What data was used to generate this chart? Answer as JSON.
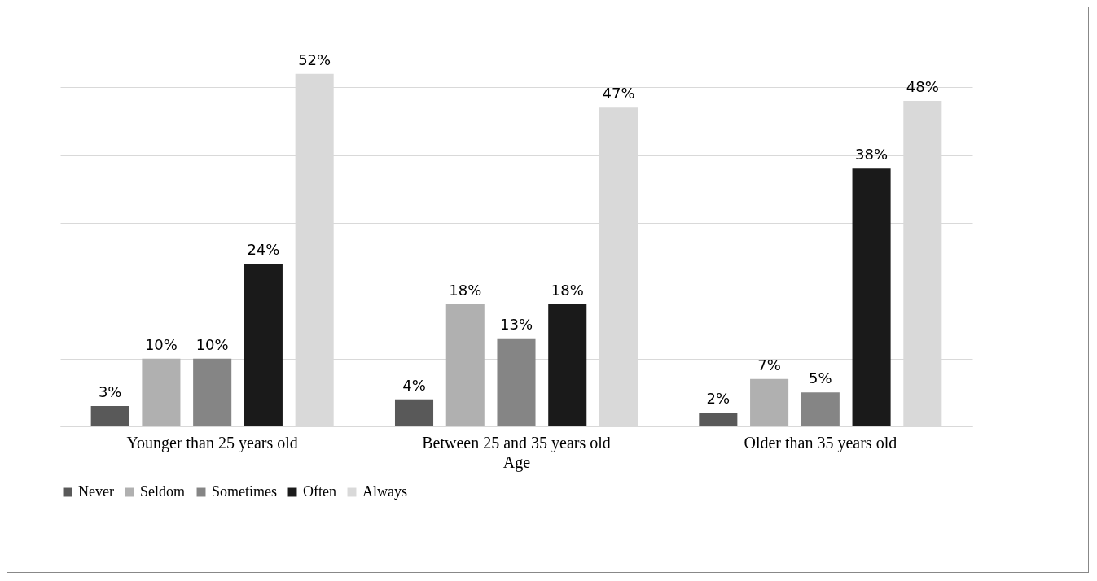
{
  "chart_data": {
    "type": "bar",
    "xlabel": "Age",
    "categories": [
      "Younger than 25 years old",
      "Between 25 and 35 years old",
      "Older than 35 years old"
    ],
    "series": [
      {
        "name": "Never",
        "color": "#595959",
        "values": [
          3,
          4,
          2
        ],
        "value_labels": [
          "3%",
          "4%",
          "2%"
        ]
      },
      {
        "name": "Seldom",
        "color": "#b0b0b0",
        "values": [
          10,
          18,
          7
        ],
        "value_labels": [
          "10%",
          "18%",
          "7%"
        ]
      },
      {
        "name": "Sometimes",
        "color": "#858585",
        "values": [
          10,
          13,
          5
        ],
        "value_labels": [
          "10%",
          "13%",
          "5%"
        ]
      },
      {
        "name": "Often",
        "color": "#1a1a1a",
        "values": [
          24,
          18,
          38
        ],
        "value_labels": [
          "24%",
          "18%",
          "38%"
        ]
      },
      {
        "name": "Always",
        "color": "#d9d9d9",
        "values": [
          52,
          47,
          48
        ],
        "value_labels": [
          "52%",
          "47%",
          "48%"
        ]
      }
    ],
    "ylim": [
      0,
      60
    ],
    "yticks": [
      {
        "value": 0,
        "label": null
      },
      {
        "value": 10,
        "label": null
      },
      {
        "value": 20,
        "label": null
      },
      {
        "value": 30,
        "label": null
      },
      {
        "value": 40,
        "label": null
      },
      {
        "value": 50,
        "label": null
      },
      {
        "value": 60,
        "label": null
      }
    ],
    "grid": "y",
    "legend": "bottom",
    "tick_labels": "x"
  }
}
